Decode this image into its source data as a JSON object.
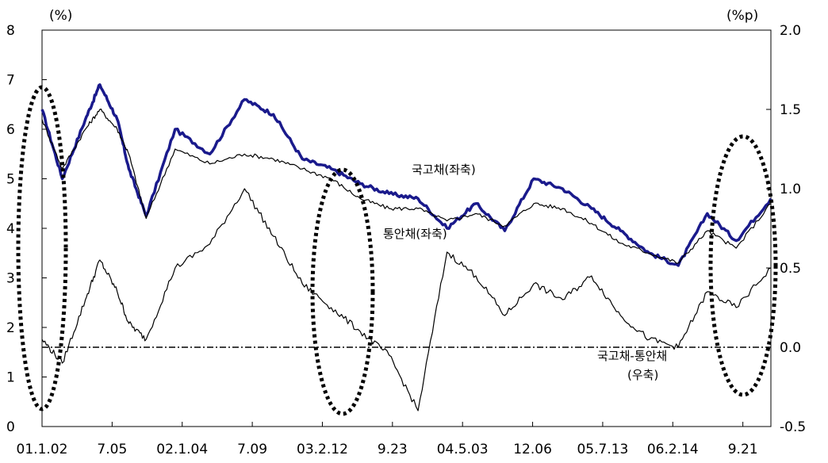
{
  "chart_data": {
    "type": "line",
    "left_axis": {
      "unit": "(%)",
      "min": 0,
      "max": 8,
      "ticks": [
        "0",
        "1",
        "2",
        "3",
        "4",
        "5",
        "6",
        "7",
        "8"
      ]
    },
    "right_axis": {
      "unit": "(%p)",
      "min": -0.5,
      "max": 2.0,
      "ticks": [
        "-0.5",
        "0.0",
        "0.5",
        "1.0",
        "1.5",
        "2.0"
      ]
    },
    "x_tick_labels": [
      "01.1.02",
      "7.05",
      "02.1.04",
      "7.09",
      "03.2.12",
      "9.23",
      "04.5.03",
      "12.06",
      "05.7.13",
      "06.2.14",
      "9.21"
    ],
    "grid": false,
    "series": [
      {
        "name": "국고채(좌축)",
        "axis": "left",
        "color": "#1a1a8c",
        "x": [
          0.0,
          0.35,
          0.75,
          1.0,
          1.3,
          1.5,
          1.8,
          2.3,
          2.9,
          3.5,
          4.0,
          4.5,
          5.0,
          5.5,
          6.0,
          6.5,
          7.0,
          7.5,
          8.0,
          8.5,
          9.0,
          9.5,
          10.0,
          10.5,
          11.0,
          11.5,
          12.0,
          12.6
        ],
        "values": [
          6.4,
          5.0,
          6.2,
          6.9,
          6.2,
          5.2,
          4.25,
          6.0,
          5.5,
          6.6,
          6.3,
          5.4,
          5.2,
          4.9,
          4.7,
          4.6,
          4.0,
          4.5,
          3.95,
          5.0,
          4.8,
          4.4,
          3.95,
          3.5,
          3.25,
          4.3,
          3.75,
          4.6
        ]
      },
      {
        "name": "통안채(좌축)",
        "axis": "left",
        "color": "#000000",
        "x": [
          0.0,
          0.35,
          0.75,
          1.0,
          1.3,
          1.5,
          1.8,
          2.3,
          2.9,
          3.5,
          4.0,
          4.5,
          5.0,
          5.5,
          6.0,
          6.5,
          7.0,
          7.5,
          8.0,
          8.5,
          9.0,
          9.5,
          10.0,
          10.5,
          11.0,
          11.5,
          12.0,
          12.6
        ],
        "values": [
          6.2,
          5.2,
          6.0,
          6.4,
          6.0,
          5.5,
          4.2,
          5.6,
          5.3,
          5.5,
          5.4,
          5.2,
          5.0,
          4.6,
          4.4,
          4.4,
          4.15,
          4.3,
          4.05,
          4.5,
          4.4,
          4.1,
          3.7,
          3.5,
          3.3,
          3.95,
          3.6,
          4.5
        ]
      },
      {
        "name": "국고채-통안채(우축)",
        "axis": "right",
        "color": "#000000",
        "x": [
          0.0,
          0.35,
          0.75,
          1.0,
          1.3,
          1.5,
          1.8,
          2.3,
          2.9,
          3.5,
          4.0,
          4.5,
          5.0,
          5.5,
          6.0,
          6.5,
          7.0,
          7.5,
          8.0,
          8.5,
          9.0,
          9.5,
          10.0,
          10.5,
          11.0,
          11.5,
          12.0,
          12.6
        ],
        "values": [
          0.05,
          -0.1,
          0.3,
          0.55,
          0.35,
          0.15,
          0.05,
          0.5,
          0.65,
          1.0,
          0.7,
          0.4,
          0.25,
          0.1,
          -0.05,
          -0.4,
          0.6,
          0.45,
          0.2,
          0.4,
          0.3,
          0.45,
          0.2,
          0.05,
          0.0,
          0.35,
          0.25,
          0.5
        ]
      }
    ],
    "reference_line": {
      "axis": "right",
      "value": 0.0,
      "style": "dash-dot"
    },
    "annotations": {
      "gov_bond": "국고채(좌축)",
      "msb": "통안채(좌축)",
      "spread_line1": "국고채-통안채",
      "spread_line2": "(우축)"
    }
  }
}
